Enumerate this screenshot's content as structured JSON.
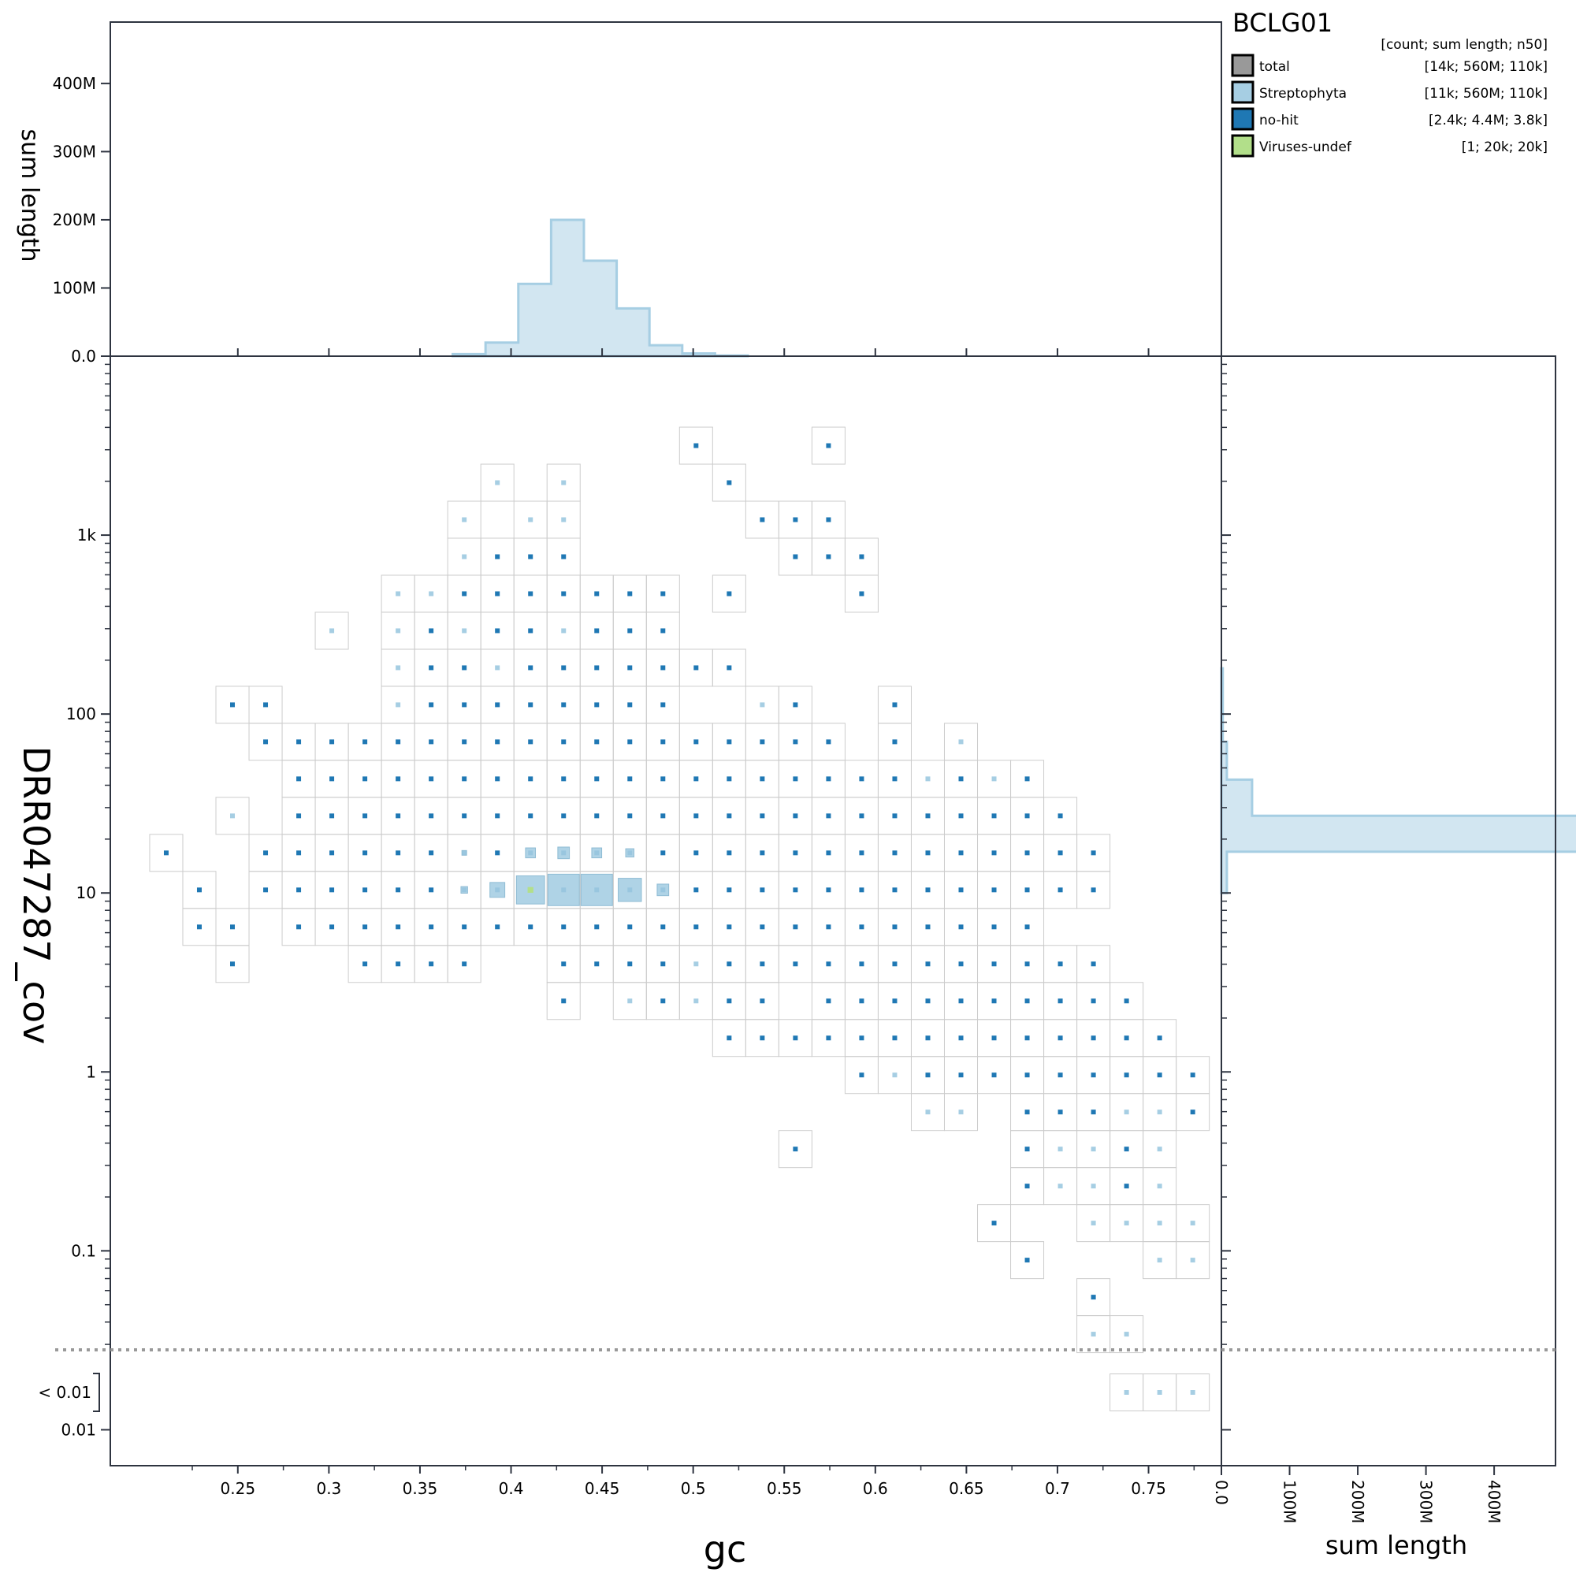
{
  "chart_data": {
    "type": "scatter",
    "title": "BCLG01",
    "xlabel": "gc",
    "ylabel": "DRR047287_cov",
    "x_ticks": [
      "0.25",
      "0.3",
      "0.35",
      "0.4",
      "0.45",
      "0.5",
      "0.55",
      "0.6",
      "0.65",
      "0.7",
      "0.75"
    ],
    "xlim": [
      0.18,
      0.79
    ],
    "y_scale": "log",
    "y_ticks": [
      "1k",
      "100",
      "10",
      "1",
      "0.1",
      "0.01"
    ],
    "y_below_label": "< 0.01",
    "ylim": [
      0.0063,
      10000
    ],
    "top_hist": {
      "ylabel": "sum length",
      "ticks": [
        "0.0",
        "100M",
        "200M",
        "300M",
        "400M"
      ],
      "bins_x": [
        0.368,
        0.386,
        0.404,
        0.422,
        0.44,
        0.458,
        0.476,
        0.494,
        0.512
      ],
      "bin_width": 0.018,
      "values_M": [
        3,
        20,
        106,
        200,
        140,
        70,
        16,
        4,
        1
      ]
    },
    "right_hist": {
      "xlabel": "sum length",
      "ticks": [
        "0.0",
        "100M",
        "200M",
        "300M",
        "400M"
      ],
      "bins": [
        {
          "from_cov": 10,
          "to_cov": 17,
          "value_M": 8
        },
        {
          "from_cov": 17,
          "to_cov": 27,
          "value_M": 540
        },
        {
          "from_cov": 27,
          "to_cov": 43,
          "value_M": 45
        },
        {
          "from_cov": 43,
          "to_cov": 70,
          "value_M": 8
        },
        {
          "from_cov": 70,
          "to_cov": 180,
          "value_M": 2
        }
      ]
    },
    "legend": {
      "header": "[count; sum length; n50]",
      "placement": "top-right",
      "entries": [
        {
          "name": "total",
          "stats": "[14k; 560M; 110k]",
          "color": "#999999"
        },
        {
          "name": "Streptophyta",
          "stats": "[11k; 560M; 110k]",
          "color": "#a6cee3"
        },
        {
          "name": "no-hit",
          "stats": "[2.4k; 4.4M; 3.8k]",
          "color": "#1f78b4"
        },
        {
          "name": "Viruses-undef",
          "stats": "[1; 20k; 20k]",
          "color": "#b2df8a"
        }
      ]
    },
    "colors": {
      "streptophyta": "#a6cee3",
      "nohit": "#1f78b4",
      "viruses": "#b2df8a",
      "grid": "#cccccc",
      "axis": "#2e3440",
      "zero_line": "#999999"
    },
    "bin_gc_start": 0.2107,
    "bin_gc_step": 0.01818,
    "bin_logcov_start": 3.5,
    "bin_logcov_step": -0.2069,
    "cells": [
      [
        16,
        0,
        "n"
      ],
      [
        20,
        0,
        "n"
      ],
      [
        10,
        1,
        "s"
      ],
      [
        12,
        1,
        "s"
      ],
      [
        17,
        1,
        "n"
      ],
      [
        9,
        2,
        "s"
      ],
      [
        11,
        2,
        "s"
      ],
      [
        12,
        2,
        "s"
      ],
      [
        18,
        2,
        "n"
      ],
      [
        19,
        2,
        "n"
      ],
      [
        20,
        2,
        "n"
      ],
      [
        9,
        3,
        "s"
      ],
      [
        10,
        3,
        "n"
      ],
      [
        11,
        3,
        "n"
      ],
      [
        12,
        3,
        "n"
      ],
      [
        19,
        3,
        "n"
      ],
      [
        20,
        3,
        "n"
      ],
      [
        21,
        3,
        "n"
      ],
      [
        7,
        4,
        "s"
      ],
      [
        8,
        4,
        "s"
      ],
      [
        9,
        4,
        "n"
      ],
      [
        10,
        4,
        "n"
      ],
      [
        11,
        4,
        "n"
      ],
      [
        12,
        4,
        "n"
      ],
      [
        13,
        4,
        "n"
      ],
      [
        14,
        4,
        "n"
      ],
      [
        15,
        4,
        "n"
      ],
      [
        17,
        4,
        "n"
      ],
      [
        21,
        4,
        "n"
      ],
      [
        5,
        5,
        "s"
      ],
      [
        7,
        5,
        "s"
      ],
      [
        8,
        5,
        "n"
      ],
      [
        9,
        5,
        "s"
      ],
      [
        10,
        5,
        "n"
      ],
      [
        11,
        5,
        "n"
      ],
      [
        12,
        5,
        "s"
      ],
      [
        13,
        5,
        "n"
      ],
      [
        14,
        5,
        "n"
      ],
      [
        15,
        5,
        "n"
      ],
      [
        7,
        6,
        "s"
      ],
      [
        8,
        6,
        "n"
      ],
      [
        9,
        6,
        "n"
      ],
      [
        10,
        6,
        "s"
      ],
      [
        11,
        6,
        "n"
      ],
      [
        12,
        6,
        "n"
      ],
      [
        13,
        6,
        "n"
      ],
      [
        14,
        6,
        "n"
      ],
      [
        15,
        6,
        "n"
      ],
      [
        16,
        6,
        "n"
      ],
      [
        17,
        6,
        "n"
      ],
      [
        2,
        7,
        "n"
      ],
      [
        3,
        7,
        "n"
      ],
      [
        7,
        7,
        "s"
      ],
      [
        8,
        7,
        "n"
      ],
      [
        9,
        7,
        "n"
      ],
      [
        10,
        7,
        "n"
      ],
      [
        11,
        7,
        "n"
      ],
      [
        12,
        7,
        "n"
      ],
      [
        13,
        7,
        "n"
      ],
      [
        14,
        7,
        "n"
      ],
      [
        15,
        7,
        "n"
      ],
      [
        18,
        7,
        "s"
      ],
      [
        19,
        7,
        "n"
      ],
      [
        22,
        7,
        "n"
      ],
      [
        3,
        8,
        "n"
      ],
      [
        4,
        8,
        "n"
      ],
      [
        5,
        8,
        "n"
      ],
      [
        6,
        8,
        "n"
      ],
      [
        7,
        8,
        "n"
      ],
      [
        8,
        8,
        "n"
      ],
      [
        9,
        8,
        "n"
      ],
      [
        10,
        8,
        "n"
      ],
      [
        11,
        8,
        "n"
      ],
      [
        12,
        8,
        "n"
      ],
      [
        13,
        8,
        "n"
      ],
      [
        14,
        8,
        "n"
      ],
      [
        15,
        8,
        "n"
      ],
      [
        16,
        8,
        "n"
      ],
      [
        17,
        8,
        "n"
      ],
      [
        18,
        8,
        "n"
      ],
      [
        19,
        8,
        "n"
      ],
      [
        20,
        8,
        "n"
      ],
      [
        22,
        8,
        "n"
      ],
      [
        24,
        8,
        "s"
      ],
      [
        4,
        9,
        "n"
      ],
      [
        5,
        9,
        "n"
      ],
      [
        6,
        9,
        "n"
      ],
      [
        7,
        9,
        "n"
      ],
      [
        8,
        9,
        "n"
      ],
      [
        9,
        9,
        "n"
      ],
      [
        10,
        9,
        "n"
      ],
      [
        11,
        9,
        "n"
      ],
      [
        12,
        9,
        "n"
      ],
      [
        13,
        9,
        "n"
      ],
      [
        14,
        9,
        "n"
      ],
      [
        15,
        9,
        "n"
      ],
      [
        16,
        9,
        "n"
      ],
      [
        17,
        9,
        "n"
      ],
      [
        18,
        9,
        "n"
      ],
      [
        19,
        9,
        "n"
      ],
      [
        20,
        9,
        "n"
      ],
      [
        21,
        9,
        "n"
      ],
      [
        22,
        9,
        "n"
      ],
      [
        23,
        9,
        "s"
      ],
      [
        24,
        9,
        "n"
      ],
      [
        25,
        9,
        "s"
      ],
      [
        26,
        9,
        "n"
      ],
      [
        2,
        10,
        "s"
      ],
      [
        4,
        10,
        "n"
      ],
      [
        5,
        10,
        "n"
      ],
      [
        6,
        10,
        "n"
      ],
      [
        7,
        10,
        "n"
      ],
      [
        8,
        10,
        "n"
      ],
      [
        9,
        10,
        "n"
      ],
      [
        10,
        10,
        "n"
      ],
      [
        11,
        10,
        "n"
      ],
      [
        12,
        10,
        "n"
      ],
      [
        13,
        10,
        "n"
      ],
      [
        14,
        10,
        "n"
      ],
      [
        15,
        10,
        "n"
      ],
      [
        16,
        10,
        "n"
      ],
      [
        17,
        10,
        "n"
      ],
      [
        18,
        10,
        "n"
      ],
      [
        19,
        10,
        "n"
      ],
      [
        20,
        10,
        "n"
      ],
      [
        21,
        10,
        "n"
      ],
      [
        22,
        10,
        "n"
      ],
      [
        23,
        10,
        "n"
      ],
      [
        24,
        10,
        "n"
      ],
      [
        25,
        10,
        "n"
      ],
      [
        26,
        10,
        "n"
      ],
      [
        27,
        10,
        "n"
      ],
      [
        0,
        11,
        "n"
      ],
      [
        3,
        11,
        "n"
      ],
      [
        4,
        11,
        "n"
      ],
      [
        5,
        11,
        "n"
      ],
      [
        6,
        11,
        "n"
      ],
      [
        7,
        11,
        "n"
      ],
      [
        8,
        11,
        "n"
      ],
      [
        9,
        11,
        "n"
      ],
      [
        10,
        11,
        "n"
      ],
      [
        11,
        11,
        "n"
      ],
      [
        12,
        11,
        "n"
      ],
      [
        13,
        11,
        "n"
      ],
      [
        14,
        11,
        "n"
      ],
      [
        15,
        11,
        "n"
      ],
      [
        16,
        11,
        "n"
      ],
      [
        17,
        11,
        "n"
      ],
      [
        18,
        11,
        "n"
      ],
      [
        19,
        11,
        "n"
      ],
      [
        20,
        11,
        "n"
      ],
      [
        21,
        11,
        "n"
      ],
      [
        22,
        11,
        "n"
      ],
      [
        23,
        11,
        "n"
      ],
      [
        24,
        11,
        "n"
      ],
      [
        25,
        11,
        "n"
      ],
      [
        26,
        11,
        "n"
      ],
      [
        27,
        11,
        "n"
      ],
      [
        28,
        11,
        "n"
      ],
      [
        1,
        12,
        "n"
      ],
      [
        3,
        12,
        "n"
      ],
      [
        4,
        12,
        "n"
      ],
      [
        5,
        12,
        "n"
      ],
      [
        6,
        12,
        "n"
      ],
      [
        7,
        12,
        "n"
      ],
      [
        8,
        12,
        "n"
      ],
      [
        9,
        12,
        "n"
      ],
      [
        10,
        12,
        "n"
      ],
      [
        11,
        12,
        "n"
      ],
      [
        12,
        12,
        "n"
      ],
      [
        13,
        12,
        "n"
      ],
      [
        14,
        12,
        "n"
      ],
      [
        15,
        12,
        "n"
      ],
      [
        16,
        12,
        "n"
      ],
      [
        17,
        12,
        "n"
      ],
      [
        18,
        12,
        "n"
      ],
      [
        19,
        12,
        "n"
      ],
      [
        20,
        12,
        "n"
      ],
      [
        21,
        12,
        "n"
      ],
      [
        22,
        12,
        "n"
      ],
      [
        23,
        12,
        "n"
      ],
      [
        24,
        12,
        "n"
      ],
      [
        25,
        12,
        "n"
      ],
      [
        26,
        12,
        "n"
      ],
      [
        27,
        12,
        "n"
      ],
      [
        28,
        12,
        "n"
      ],
      [
        1,
        13,
        "n"
      ],
      [
        2,
        13,
        "n"
      ],
      [
        4,
        13,
        "n"
      ],
      [
        5,
        13,
        "n"
      ],
      [
        6,
        13,
        "n"
      ],
      [
        7,
        13,
        "n"
      ],
      [
        8,
        13,
        "n"
      ],
      [
        9,
        13,
        "n"
      ],
      [
        10,
        13,
        "n"
      ],
      [
        11,
        13,
        "n"
      ],
      [
        12,
        13,
        "n"
      ],
      [
        13,
        13,
        "n"
      ],
      [
        14,
        13,
        "n"
      ],
      [
        15,
        13,
        "n"
      ],
      [
        16,
        13,
        "n"
      ],
      [
        17,
        13,
        "n"
      ],
      [
        18,
        13,
        "n"
      ],
      [
        19,
        13,
        "n"
      ],
      [
        20,
        13,
        "n"
      ],
      [
        21,
        13,
        "n"
      ],
      [
        22,
        13,
        "n"
      ],
      [
        23,
        13,
        "n"
      ],
      [
        24,
        13,
        "n"
      ],
      [
        25,
        13,
        "n"
      ],
      [
        26,
        13,
        "n"
      ],
      [
        2,
        14,
        "n"
      ],
      [
        6,
        14,
        "n"
      ],
      [
        7,
        14,
        "n"
      ],
      [
        8,
        14,
        "n"
      ],
      [
        9,
        14,
        "n"
      ],
      [
        12,
        14,
        "n"
      ],
      [
        13,
        14,
        "n"
      ],
      [
        14,
        14,
        "n"
      ],
      [
        15,
        14,
        "n"
      ],
      [
        16,
        14,
        "s"
      ],
      [
        17,
        14,
        "n"
      ],
      [
        18,
        14,
        "n"
      ],
      [
        19,
        14,
        "n"
      ],
      [
        20,
        14,
        "n"
      ],
      [
        21,
        14,
        "n"
      ],
      [
        22,
        14,
        "n"
      ],
      [
        23,
        14,
        "n"
      ],
      [
        24,
        14,
        "n"
      ],
      [
        25,
        14,
        "n"
      ],
      [
        26,
        14,
        "n"
      ],
      [
        27,
        14,
        "n"
      ],
      [
        28,
        14,
        "n"
      ],
      [
        12,
        15,
        "n"
      ],
      [
        14,
        15,
        "s"
      ],
      [
        15,
        15,
        "n"
      ],
      [
        16,
        15,
        "s"
      ],
      [
        17,
        15,
        "n"
      ],
      [
        18,
        15,
        "n"
      ],
      [
        20,
        15,
        "n"
      ],
      [
        21,
        15,
        "n"
      ],
      [
        22,
        15,
        "n"
      ],
      [
        23,
        15,
        "n"
      ],
      [
        24,
        15,
        "n"
      ],
      [
        25,
        15,
        "n"
      ],
      [
        26,
        15,
        "n"
      ],
      [
        27,
        15,
        "n"
      ],
      [
        28,
        15,
        "n"
      ],
      [
        29,
        15,
        "n"
      ],
      [
        17,
        16,
        "n"
      ],
      [
        18,
        16,
        "n"
      ],
      [
        19,
        16,
        "n"
      ],
      [
        20,
        16,
        "n"
      ],
      [
        21,
        16,
        "n"
      ],
      [
        22,
        16,
        "n"
      ],
      [
        23,
        16,
        "n"
      ],
      [
        24,
        16,
        "n"
      ],
      [
        25,
        16,
        "n"
      ],
      [
        26,
        16,
        "n"
      ],
      [
        27,
        16,
        "n"
      ],
      [
        28,
        16,
        "n"
      ],
      [
        29,
        16,
        "n"
      ],
      [
        30,
        16,
        "n"
      ],
      [
        21,
        17,
        "n"
      ],
      [
        22,
        17,
        "s"
      ],
      [
        23,
        17,
        "n"
      ],
      [
        24,
        17,
        "n"
      ],
      [
        25,
        17,
        "n"
      ],
      [
        26,
        17,
        "n"
      ],
      [
        27,
        17,
        "n"
      ],
      [
        28,
        17,
        "n"
      ],
      [
        29,
        17,
        "n"
      ],
      [
        30,
        17,
        "n"
      ],
      [
        31,
        17,
        "n"
      ],
      [
        23,
        18,
        "s"
      ],
      [
        24,
        18,
        "s"
      ],
      [
        26,
        18,
        "n"
      ],
      [
        27,
        18,
        "n"
      ],
      [
        28,
        18,
        "n"
      ],
      [
        29,
        18,
        "s"
      ],
      [
        30,
        18,
        "s"
      ],
      [
        31,
        18,
        "n"
      ],
      [
        19,
        19,
        "n"
      ],
      [
        26,
        19,
        "n"
      ],
      [
        27,
        19,
        "s"
      ],
      [
        28,
        19,
        "s"
      ],
      [
        29,
        19,
        "n"
      ],
      [
        30,
        19,
        "s"
      ],
      [
        26,
        20,
        "n"
      ],
      [
        27,
        20,
        "s"
      ],
      [
        28,
        20,
        "s"
      ],
      [
        29,
        20,
        "n"
      ],
      [
        30,
        20,
        "s"
      ],
      [
        25,
        21,
        "n"
      ],
      [
        28,
        21,
        "s"
      ],
      [
        29,
        21,
        "s"
      ],
      [
        30,
        21,
        "s"
      ],
      [
        31,
        21,
        "s"
      ],
      [
        26,
        22,
        "n"
      ],
      [
        30,
        22,
        "s"
      ],
      [
        31,
        22,
        "s"
      ],
      [
        28,
        23,
        "n"
      ],
      [
        28,
        24,
        "s"
      ],
      [
        29,
        24,
        "s"
      ],
      [
        29,
        99,
        "s"
      ],
      [
        30,
        99,
        "s"
      ],
      [
        31,
        99,
        "s"
      ]
    ],
    "large_cells": [
      [
        10,
        12,
        0.45,
        "s"
      ],
      [
        11,
        12,
        0.85,
        "s"
      ],
      [
        12,
        12,
        0.95,
        "s"
      ],
      [
        13,
        12,
        0.95,
        "s"
      ],
      [
        14,
        12,
        0.7,
        "s"
      ],
      [
        15,
        12,
        0.35,
        "s"
      ],
      [
        11,
        11,
        0.3,
        "s"
      ],
      [
        12,
        11,
        0.35,
        "s"
      ],
      [
        13,
        11,
        0.3,
        "s"
      ],
      [
        14,
        11,
        0.25,
        "s"
      ],
      [
        9,
        11,
        0.12,
        "s"
      ],
      [
        9,
        12,
        0.2,
        "s"
      ],
      [
        11,
        12,
        0.15,
        "v"
      ]
    ]
  }
}
